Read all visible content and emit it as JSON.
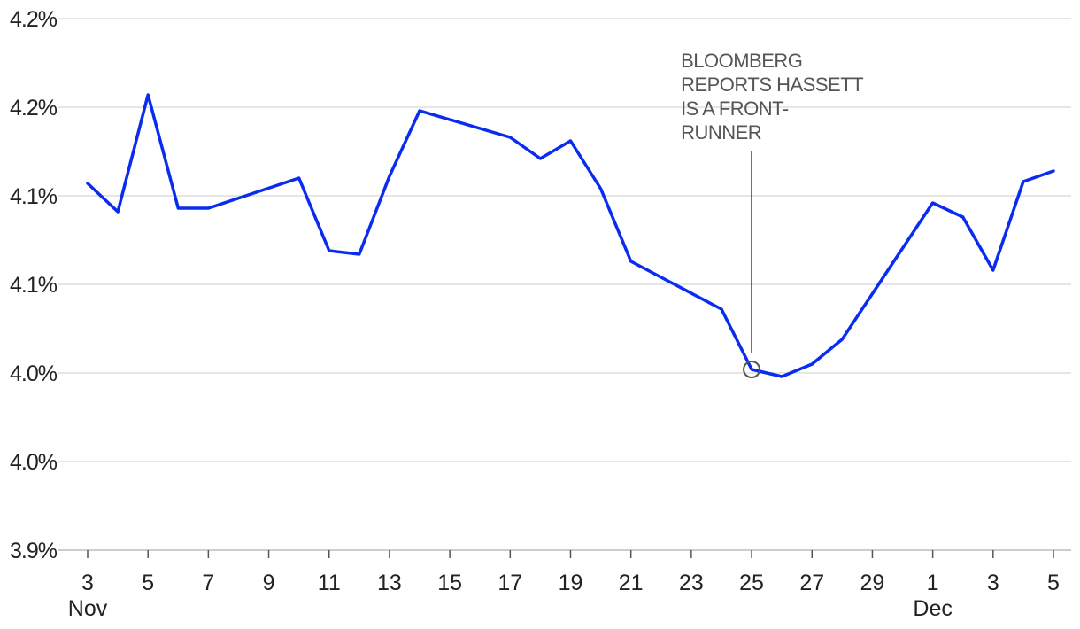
{
  "chart_data": {
    "type": "line",
    "title": "",
    "xlabel": "",
    "ylabel": "",
    "grid": true,
    "y_ticks": [
      "3.9%",
      "4.0%",
      "4.0%",
      "4.1%",
      "4.1%",
      "4.2%",
      "4.2%"
    ],
    "y_tick_values": [
      3.9,
      3.95,
      4.0,
      4.05,
      4.1,
      4.15,
      4.2
    ],
    "ylim": [
      3.9,
      4.2
    ],
    "x_ticks": [
      "3",
      "5",
      "7",
      "9",
      "11",
      "13",
      "15",
      "17",
      "19",
      "21",
      "23",
      "25",
      "27",
      "29",
      "1",
      "3",
      "5"
    ],
    "x_tick_dates": [
      "2025-11-03",
      "2025-11-05",
      "2025-11-07",
      "2025-11-09",
      "2025-11-11",
      "2025-11-13",
      "2025-11-15",
      "2025-11-17",
      "2025-11-19",
      "2025-11-21",
      "2025-11-23",
      "2025-11-25",
      "2025-11-27",
      "2025-11-29",
      "2025-12-01",
      "2025-12-03",
      "2025-12-05"
    ],
    "month_labels": [
      {
        "label": "Nov",
        "date": "2025-11-03"
      },
      {
        "label": "Dec",
        "date": "2025-12-01"
      }
    ],
    "xlim": [
      "2025-11-03",
      "2025-12-05"
    ],
    "series": [
      {
        "color": "#0a2bf0",
        "x": [
          "2025-11-03",
          "2025-11-04",
          "2025-11-05",
          "2025-11-06",
          "2025-11-07",
          "2025-11-10",
          "2025-11-11",
          "2025-11-12",
          "2025-11-13",
          "2025-11-14",
          "2025-11-17",
          "2025-11-18",
          "2025-11-19",
          "2025-11-20",
          "2025-11-21",
          "2025-11-24",
          "2025-11-25",
          "2025-11-26",
          "2025-11-27",
          "2025-11-28",
          "2025-12-01",
          "2025-12-02",
          "2025-12-03",
          "2025-12-04",
          "2025-12-05"
        ],
        "values": [
          4.107,
          4.091,
          4.157,
          4.093,
          4.093,
          4.11,
          4.069,
          4.067,
          4.111,
          4.148,
          4.133,
          4.121,
          4.131,
          4.104,
          4.063,
          4.036,
          4.002,
          3.998,
          4.005,
          4.019,
          4.096,
          4.088,
          4.058,
          4.108,
          4.114
        ]
      }
    ],
    "annotations": [
      {
        "date": "2025-11-25",
        "value": 4.002,
        "lines": [
          "BLOOMBERG",
          "REPORTS HASSETT",
          "IS A FRONT-",
          "RUNNER"
        ]
      }
    ]
  }
}
